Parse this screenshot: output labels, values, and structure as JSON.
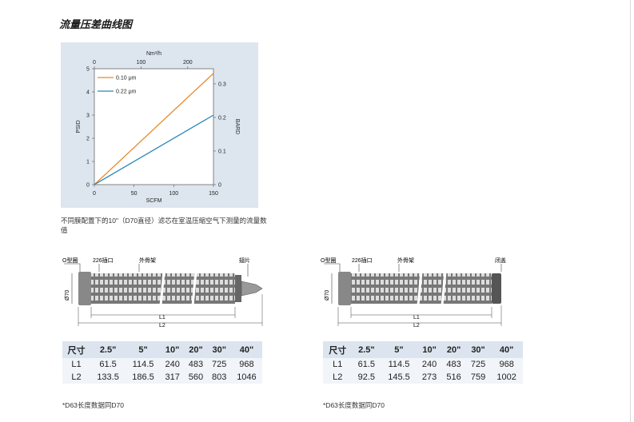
{
  "title": "流量压差曲线图",
  "chart_data": {
    "type": "line",
    "x_bottom": {
      "label": "SCFM",
      "range": [
        0,
        150
      ],
      "ticks": [
        "0",
        "50",
        "100",
        "150"
      ]
    },
    "x_top": {
      "label": "Nm³/h",
      "range": [
        0,
        255
      ],
      "ticks": [
        "0",
        "100",
        "200"
      ]
    },
    "y_left": {
      "label": "PSID",
      "range": [
        0,
        5
      ],
      "ticks": [
        "0",
        "1",
        "2",
        "3",
        "4",
        "5"
      ]
    },
    "y_right": {
      "label": "BARD",
      "range": [
        0,
        0.345
      ],
      "ticks": [
        "0",
        "0.1",
        "0.2",
        "0.3"
      ]
    },
    "series": [
      {
        "name": "0.10 μm",
        "color": "#e8892b",
        "x": [
          0,
          150
        ],
        "y": [
          0,
          4.8
        ]
      },
      {
        "name": "0.22 μm",
        "color": "#2a86b8",
        "x": [
          0,
          150
        ],
        "y": [
          0,
          3.0
        ]
      }
    ],
    "legend": "top-left",
    "grid": false
  },
  "chart_note": "不同膜配置下的10\"（D70直径）滤芯在室温压缩空气下测量的流量数值",
  "left_drawing": {
    "labels": {
      "oring": "O型圈",
      "adapter": "226插口",
      "cage": "外骨架",
      "end": "翅片",
      "dia": "Ø70",
      "l1": "L1",
      "l2": "L2"
    }
  },
  "right_drawing": {
    "labels": {
      "oring": "O型圈",
      "adapter": "226插口",
      "cage": "外骨架",
      "end": "闭盖",
      "dia": "Ø70",
      "l1": "L1",
      "l2": "L2"
    }
  },
  "left_table": {
    "header": [
      "尺寸",
      "2.5\"",
      "5\"",
      "10\"",
      "20\"",
      "30\"",
      "40\""
    ],
    "rows": [
      [
        "L1",
        "61.5",
        "114.5",
        "240",
        "483",
        "725",
        "968"
      ],
      [
        "L2",
        "133.5",
        "186.5",
        "317",
        "560",
        "803",
        "1046"
      ]
    ]
  },
  "right_table": {
    "header": [
      "尺寸",
      "2.5\"",
      "5\"",
      "10\"",
      "20\"",
      "30\"",
      "40\""
    ],
    "rows": [
      [
        "L1",
        "61.5",
        "114.5",
        "240",
        "483",
        "725",
        "968"
      ],
      [
        "L2",
        "92.5",
        "145.5",
        "273",
        "516",
        "759",
        "1002"
      ]
    ]
  },
  "left_footnote": "*D63长度数据同D70",
  "right_footnote": "*D63长度数据同D70"
}
